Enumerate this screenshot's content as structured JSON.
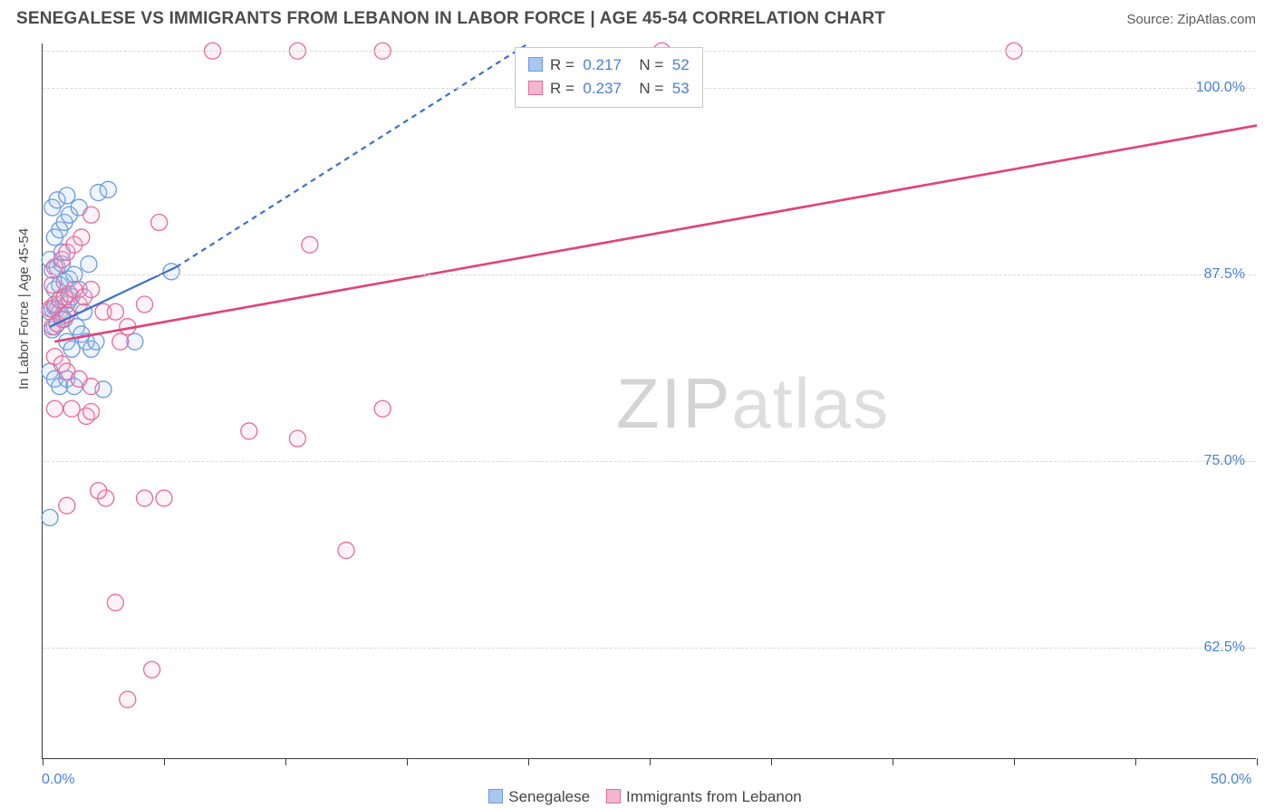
{
  "header": {
    "title": "SENEGALESE VS IMMIGRANTS FROM LEBANON IN LABOR FORCE | AGE 45-54 CORRELATION CHART",
    "source": "Source: ZipAtlas.com"
  },
  "watermark": {
    "text_a": "ZIP",
    "text_b": "atlas"
  },
  "chart": {
    "type": "scatter",
    "ylabel": "In Labor Force | Age 45-54",
    "xlim": [
      0,
      50
    ],
    "ylim": [
      55,
      103
    ],
    "x_ticks_every": 5,
    "x_tick_labels": [
      {
        "v": 0,
        "t": "0.0%"
      },
      {
        "v": 50,
        "t": "50.0%"
      }
    ],
    "y_gridlines": [
      62.5,
      75.0,
      87.5,
      100.0,
      102.5
    ],
    "y_tick_labels": [
      {
        "v": 62.5,
        "t": "62.5%"
      },
      {
        "v": 75.0,
        "t": "75.0%"
      },
      {
        "v": 87.5,
        "t": "87.5%"
      },
      {
        "v": 100.0,
        "t": "100.0%"
      }
    ],
    "background_color": "#ffffff",
    "grid_color": "#d8d8d8",
    "axis_color": "#3a3a3a",
    "label_color": "#4a7fd8",
    "marker_radius": 9,
    "marker_stroke_width": 1.3,
    "marker_fill_opacity": 0.18,
    "series": [
      {
        "name": "Senegalese",
        "color_stroke": "#6a9ae0",
        "color_fill": "#a9c6ef",
        "r_value": "0.217",
        "n_value": "52",
        "trend": {
          "x1": 0.3,
          "y1": 84.0,
          "x2": 5.5,
          "y2": 88.0,
          "solid_until_x": 5.5,
          "dash_to": {
            "x": 20,
            "y": 103
          },
          "color": "#3c6fc9",
          "width": 2.2,
          "dash": "6,5"
        },
        "points": [
          {
            "x": 0.3,
            "y": 85.0
          },
          {
            "x": 0.4,
            "y": 85.2
          },
          {
            "x": 0.5,
            "y": 85.3
          },
          {
            "x": 0.6,
            "y": 85.2
          },
          {
            "x": 0.7,
            "y": 85.0
          },
          {
            "x": 0.8,
            "y": 84.7
          },
          {
            "x": 0.9,
            "y": 84.5
          },
          {
            "x": 1.0,
            "y": 85.5
          },
          {
            "x": 1.1,
            "y": 85.8
          },
          {
            "x": 1.2,
            "y": 86.0
          },
          {
            "x": 0.5,
            "y": 86.5
          },
          {
            "x": 0.7,
            "y": 86.8
          },
          {
            "x": 0.9,
            "y": 87.0
          },
          {
            "x": 1.1,
            "y": 87.2
          },
          {
            "x": 1.3,
            "y": 87.5
          },
          {
            "x": 0.4,
            "y": 87.8
          },
          {
            "x": 0.6,
            "y": 88.0
          },
          {
            "x": 0.8,
            "y": 88.2
          },
          {
            "x": 1.4,
            "y": 84.0
          },
          {
            "x": 1.6,
            "y": 83.5
          },
          {
            "x": 1.8,
            "y": 83.0
          },
          {
            "x": 2.0,
            "y": 82.5
          },
          {
            "x": 2.2,
            "y": 83.0
          },
          {
            "x": 1.0,
            "y": 83.0
          },
          {
            "x": 1.2,
            "y": 82.5
          },
          {
            "x": 0.3,
            "y": 81.0
          },
          {
            "x": 0.5,
            "y": 80.5
          },
          {
            "x": 0.7,
            "y": 80.0
          },
          {
            "x": 1.0,
            "y": 80.5
          },
          {
            "x": 1.3,
            "y": 80.0
          },
          {
            "x": 2.5,
            "y": 79.8
          },
          {
            "x": 0.5,
            "y": 90.0
          },
          {
            "x": 0.7,
            "y": 90.5
          },
          {
            "x": 0.9,
            "y": 91.0
          },
          {
            "x": 1.1,
            "y": 91.5
          },
          {
            "x": 0.4,
            "y": 92.0
          },
          {
            "x": 0.6,
            "y": 92.5
          },
          {
            "x": 1.0,
            "y": 92.8
          },
          {
            "x": 1.5,
            "y": 92.0
          },
          {
            "x": 2.3,
            "y": 93.0
          },
          {
            "x": 2.7,
            "y": 93.2
          },
          {
            "x": 0.5,
            "y": 84.0
          },
          {
            "x": 1.7,
            "y": 85.0
          },
          {
            "x": 1.5,
            "y": 86.5
          },
          {
            "x": 5.3,
            "y": 87.7
          },
          {
            "x": 0.3,
            "y": 88.5
          },
          {
            "x": 0.4,
            "y": 83.8
          },
          {
            "x": 0.6,
            "y": 84.2
          },
          {
            "x": 1.9,
            "y": 88.2
          },
          {
            "x": 0.3,
            "y": 71.2
          },
          {
            "x": 3.8,
            "y": 83.0
          },
          {
            "x": 0.8,
            "y": 89.0
          }
        ]
      },
      {
        "name": "Immigants from Lebanon",
        "display_name": "Immigrants from Lebanon",
        "color_stroke": "#e76a9c",
        "color_fill": "#f4b6cd",
        "r_value": "0.237",
        "n_value": "53",
        "trend": {
          "x1": 0.5,
          "y1": 83.0,
          "x2": 50,
          "y2": 97.5,
          "color": "#e0447c",
          "width": 2.5
        },
        "points": [
          {
            "x": 0.3,
            "y": 85.2
          },
          {
            "x": 0.5,
            "y": 85.5
          },
          {
            "x": 0.7,
            "y": 85.8
          },
          {
            "x": 0.9,
            "y": 86.0
          },
          {
            "x": 1.1,
            "y": 86.2
          },
          {
            "x": 1.3,
            "y": 86.5
          },
          {
            "x": 0.4,
            "y": 84.0
          },
          {
            "x": 0.6,
            "y": 84.2
          },
          {
            "x": 0.8,
            "y": 84.5
          },
          {
            "x": 1.0,
            "y": 84.8
          },
          {
            "x": 1.5,
            "y": 85.5
          },
          {
            "x": 1.7,
            "y": 86.0
          },
          {
            "x": 2.0,
            "y": 86.5
          },
          {
            "x": 2.5,
            "y": 85.0
          },
          {
            "x": 3.0,
            "y": 85.0
          },
          {
            "x": 3.5,
            "y": 84.0
          },
          {
            "x": 4.2,
            "y": 85.5
          },
          {
            "x": 4.8,
            "y": 91.0
          },
          {
            "x": 0.5,
            "y": 88.0
          },
          {
            "x": 0.8,
            "y": 88.5
          },
          {
            "x": 1.0,
            "y": 89.0
          },
          {
            "x": 1.3,
            "y": 89.5
          },
          {
            "x": 1.6,
            "y": 90.0
          },
          {
            "x": 2.0,
            "y": 91.5
          },
          {
            "x": 0.5,
            "y": 82.0
          },
          {
            "x": 0.8,
            "y": 81.5
          },
          {
            "x": 1.0,
            "y": 81.0
          },
          {
            "x": 1.5,
            "y": 80.5
          },
          {
            "x": 2.0,
            "y": 80.0
          },
          {
            "x": 1.2,
            "y": 78.5
          },
          {
            "x": 1.8,
            "y": 78.0
          },
          {
            "x": 0.5,
            "y": 78.5
          },
          {
            "x": 2.0,
            "y": 78.3
          },
          {
            "x": 2.6,
            "y": 72.5
          },
          {
            "x": 4.2,
            "y": 72.5
          },
          {
            "x": 5.0,
            "y": 72.5
          },
          {
            "x": 2.3,
            "y": 73.0
          },
          {
            "x": 3.5,
            "y": 59.0
          },
          {
            "x": 4.5,
            "y": 61.0
          },
          {
            "x": 3.0,
            "y": 65.5
          },
          {
            "x": 8.5,
            "y": 77.0
          },
          {
            "x": 10.5,
            "y": 76.5
          },
          {
            "x": 12.5,
            "y": 69.0
          },
          {
            "x": 14.0,
            "y": 78.5
          },
          {
            "x": 11.0,
            "y": 89.5
          },
          {
            "x": 7.0,
            "y": 102.5
          },
          {
            "x": 10.5,
            "y": 102.5
          },
          {
            "x": 14.0,
            "y": 102.5
          },
          {
            "x": 25.5,
            "y": 102.5
          },
          {
            "x": 40.0,
            "y": 102.5
          },
          {
            "x": 3.2,
            "y": 83.0
          },
          {
            "x": 0.4,
            "y": 86.8
          },
          {
            "x": 1.0,
            "y": 72.0
          }
        ]
      }
    ],
    "legend_bottom": [
      {
        "label": "Senegalese",
        "fill": "#a9c6ef",
        "stroke": "#6a9ae0"
      },
      {
        "label": "Immigrants from Lebanon",
        "fill": "#f4b6cd",
        "stroke": "#e76a9c"
      }
    ]
  }
}
